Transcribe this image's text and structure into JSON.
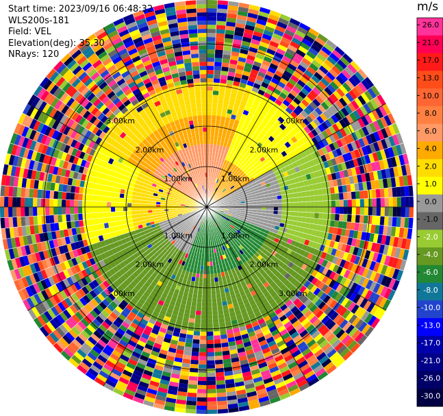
{
  "info": {
    "start_time": "Start time: 2023/09/16 06:48:32",
    "instrument": "WLS200s-181",
    "field": "Field: VEL",
    "elevation": "Elevation(deg): 35.30",
    "nrays": "NRays: 120"
  },
  "chart_data": {
    "type": "ppi",
    "field": "VEL",
    "units": "m/s",
    "nrays": 120,
    "ring_labels": [
      "1.00km",
      "2.00km",
      "3.00km"
    ],
    "colorbar": {
      "title": "m/s",
      "tick_labels": [
        "26.0",
        "21.0",
        "17.0",
        "13.0",
        "10.0",
        "8.0",
        "6.0",
        "4.0",
        "2.0",
        "1.0",
        "0.0",
        "-1.0",
        "-2.0",
        "-4.0",
        "-6.0",
        "-8.0",
        "-10.0",
        "-13.0",
        "-17.0",
        "-21.0",
        "-26.0",
        "-30.0"
      ],
      "colors": [
        "#ff3399",
        "#ff0055",
        "#ff1a1a",
        "#ff4d1a",
        "#ff6633",
        "#ff8040",
        "#ff9966",
        "#ffaa00",
        "#ffdd00",
        "#ffff00",
        "#999999",
        "#666666",
        "#99cc33",
        "#669922",
        "#228833",
        "#117799",
        "#2244cc",
        "#0000ff",
        "#0000aa",
        "#000088",
        "#000066",
        "#000044"
      ]
    }
  }
}
